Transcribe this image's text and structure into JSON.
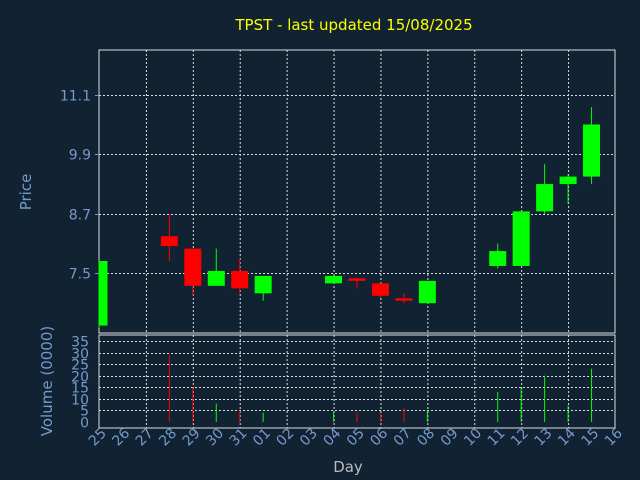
{
  "chart_data": {
    "type": "candlestick",
    "title": "TPST - last updated 15/08/2025",
    "xlabel": "Day",
    "price_panel": {
      "ylabel": "Price",
      "ylim": [
        6.3,
        12.0
      ],
      "yticks": [
        7.5,
        8.7,
        9.9,
        11.1
      ],
      "ytick_labels": [
        "7.5",
        "8.7",
        "9.9",
        "11.1"
      ]
    },
    "volume_panel": {
      "ylabel": "Volume (0000)",
      "ylim": [
        0,
        35
      ],
      "yticks": [
        0,
        5,
        10,
        15,
        20,
        25,
        30,
        35
      ],
      "ytick_labels": [
        "0",
        "5",
        "10",
        "15",
        "20",
        "25",
        "30",
        "35"
      ]
    },
    "x_tick_labels": [
      "25",
      "26",
      "27",
      "28",
      "29",
      "30",
      "31",
      "01",
      "02",
      "03",
      "04",
      "05",
      "06",
      "07",
      "08",
      "09",
      "10",
      "11",
      "12",
      "13",
      "14",
      "15",
      "16"
    ],
    "candles": [
      {
        "day": "25",
        "open": 6.45,
        "close": 7.75,
        "high": 7.75,
        "low": 6.4,
        "volume": 0
      },
      {
        "day": "28",
        "open": 8.25,
        "close": 8.05,
        "high": 8.7,
        "low": 7.75,
        "volume": 29
      },
      {
        "day": "29",
        "open": 8.0,
        "close": 7.25,
        "high": 8.0,
        "low": 7.05,
        "volume": 15
      },
      {
        "day": "30",
        "open": 7.25,
        "close": 7.55,
        "high": 8.0,
        "low": 7.25,
        "volume": 8
      },
      {
        "day": "31",
        "open": 7.55,
        "close": 7.2,
        "high": 7.8,
        "low": 7.1,
        "volume": 5
      },
      {
        "day": "01",
        "open": 7.1,
        "close": 7.45,
        "high": 7.45,
        "low": 6.95,
        "volume": 4
      },
      {
        "day": "04",
        "open": 7.3,
        "close": 7.45,
        "high": 7.45,
        "low": 7.3,
        "volume": 4
      },
      {
        "day": "05",
        "open": 7.4,
        "close": 7.35,
        "high": 7.42,
        "low": 7.2,
        "volume": 4
      },
      {
        "day": "06",
        "open": 7.3,
        "close": 7.05,
        "high": 7.3,
        "low": 7.0,
        "volume": 4
      },
      {
        "day": "07",
        "open": 7.0,
        "close": 6.95,
        "high": 7.1,
        "low": 6.9,
        "volume": 6
      },
      {
        "day": "08",
        "open": 6.9,
        "close": 7.35,
        "high": 7.35,
        "low": 6.9,
        "volume": 5
      },
      {
        "day": "11",
        "open": 7.65,
        "close": 7.95,
        "high": 8.1,
        "low": 7.6,
        "volume": 13
      },
      {
        "day": "12",
        "open": 7.65,
        "close": 8.75,
        "high": 8.75,
        "low": 7.65,
        "volume": 15
      },
      {
        "day": "13",
        "open": 8.75,
        "close": 9.3,
        "high": 9.7,
        "low": 8.7,
        "volume": 20
      },
      {
        "day": "14",
        "open": 9.3,
        "close": 9.45,
        "high": 9.5,
        "low": 8.9,
        "volume": 7
      },
      {
        "day": "15",
        "open": 9.45,
        "close": 10.5,
        "high": 10.85,
        "low": 9.3,
        "volume": 23
      }
    ],
    "colors": {
      "up": "#00ff00",
      "down": "#ff0000",
      "grid": "#dddddd",
      "axis": "#7799cc",
      "title": "#ffff00",
      "background": "#112233"
    },
    "grid": true
  }
}
